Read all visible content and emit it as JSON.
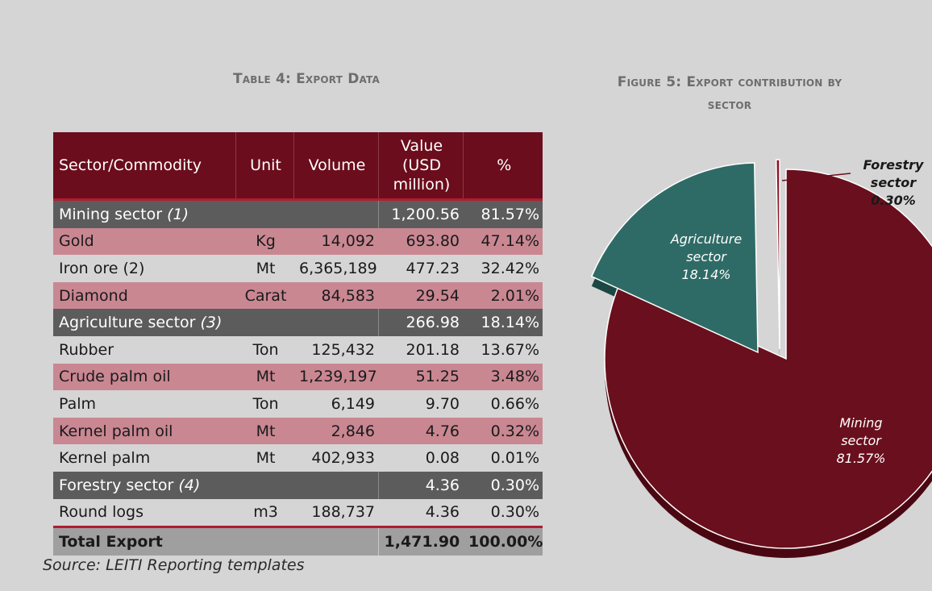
{
  "table_title": "Table 4: Export Data",
  "figure_title_line1": "Figure 5: Export contribution by",
  "figure_title_line2": "sector",
  "headers": {
    "sector": "Sector/Commodity",
    "unit": "Unit",
    "volume": "Volume",
    "value_line1": "Value",
    "value_line2": "(USD",
    "value_line3": "million)",
    "pct": "%"
  },
  "rows": [
    {
      "kind": "sector",
      "name": "Mining sector",
      "note": "(1)",
      "unit": "",
      "volume": "",
      "value": "1,200.56",
      "pct": "81.57%"
    },
    {
      "kind": "pink",
      "name": "Gold",
      "unit": "Kg",
      "volume": "14,092",
      "value": "693.80",
      "pct": "47.14%"
    },
    {
      "kind": "plain",
      "name": "Iron ore (2)",
      "unit": "Mt",
      "volume": "6,365,189",
      "value": "477.23",
      "pct": "32.42%"
    },
    {
      "kind": "pink",
      "name": "Diamond",
      "unit": "Carat",
      "volume": "84,583",
      "value": "29.54",
      "pct": "2.01%"
    },
    {
      "kind": "sector",
      "name": "Agriculture sector",
      "note": "(3)",
      "unit": "",
      "volume": "",
      "value": "266.98",
      "pct": "18.14%"
    },
    {
      "kind": "plain",
      "name": "Rubber",
      "unit": "Ton",
      "volume": "125,432",
      "value": "201.18",
      "pct": "13.67%"
    },
    {
      "kind": "pink",
      "name": "Crude palm oil",
      "unit": "Mt",
      "volume": "1,239,197",
      "value": "51.25",
      "pct": "3.48%"
    },
    {
      "kind": "plain",
      "name": "Palm",
      "unit": "Ton",
      "volume": "6,149",
      "value": "9.70",
      "pct": "0.66%"
    },
    {
      "kind": "pink",
      "name": "Kernel palm oil",
      "unit": "Mt",
      "volume": "2,846",
      "value": "4.76",
      "pct": "0.32%"
    },
    {
      "kind": "plain",
      "name": "Kernel palm",
      "unit": "Mt",
      "volume": "402,933",
      "value": "0.08",
      "pct": "0.01%"
    },
    {
      "kind": "sector",
      "name": "Forestry sector",
      "note": "(4)",
      "unit": "",
      "volume": "",
      "value": "4.36",
      "pct": "0.30%"
    },
    {
      "kind": "plain",
      "name": "Round logs",
      "unit": "m3",
      "volume": "188,737",
      "value": "4.36",
      "pct": "0.30%"
    }
  ],
  "total": {
    "name": "Total Export",
    "value": "1,471.90",
    "pct": "100.00%"
  },
  "source": "Source: LEITI Reporting templates",
  "chart_data": {
    "type": "pie",
    "title": "Figure 5: Export contribution by sector",
    "slices": [
      {
        "line1": "Mining",
        "line2": "sector",
        "pct_label": "81.57%",
        "value": 81.57,
        "color": "#6a0f1d",
        "side": "#4a0712"
      },
      {
        "line1": "Agriculture",
        "line2": "sector",
        "pct_label": "18.14%",
        "value": 18.14,
        "color": "#2f6b66",
        "side": "#1c4744"
      },
      {
        "line1": "Forestry",
        "line2": "sector",
        "pct_label": "0.30%",
        "value": 0.3,
        "color": "#8a1528",
        "side": "#5a0a17"
      }
    ]
  }
}
